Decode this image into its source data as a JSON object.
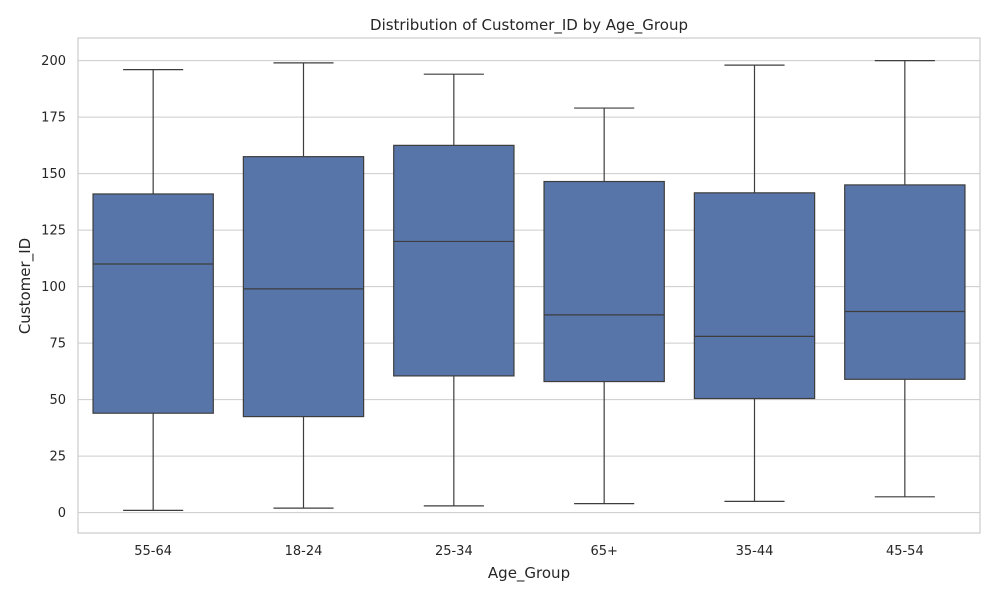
{
  "chart_data": {
    "type": "box",
    "title": "Distribution of Customer_ID by Age_Group",
    "xlabel": "Age_Group",
    "ylabel": "Customer_ID",
    "ylim": [
      -9,
      210
    ],
    "yticks": [
      0,
      25,
      50,
      75,
      100,
      125,
      150,
      175,
      200
    ],
    "grid": "horizontal",
    "box_color": "#5875a9",
    "line_color": "#3d3d3d",
    "categories": [
      "55-64",
      "18-24",
      "25-34",
      "65+",
      "35-44",
      "45-54"
    ],
    "boxes": [
      {
        "category": "55-64",
        "min": 1,
        "q1": 44,
        "median": 110,
        "q3": 141,
        "max": 196
      },
      {
        "category": "18-24",
        "min": 2,
        "q1": 42.5,
        "median": 99,
        "q3": 157.5,
        "max": 199
      },
      {
        "category": "25-34",
        "min": 3,
        "q1": 60.5,
        "median": 120,
        "q3": 162.5,
        "max": 194
      },
      {
        "category": "65+",
        "min": 4,
        "q1": 58,
        "median": 87.5,
        "q3": 146.5,
        "max": 179
      },
      {
        "category": "35-44",
        "min": 5,
        "q1": 50.5,
        "median": 78,
        "q3": 141.5,
        "max": 198
      },
      {
        "category": "45-54",
        "min": 7,
        "q1": 59,
        "median": 89,
        "q3": 145,
        "max": 200
      }
    ]
  }
}
